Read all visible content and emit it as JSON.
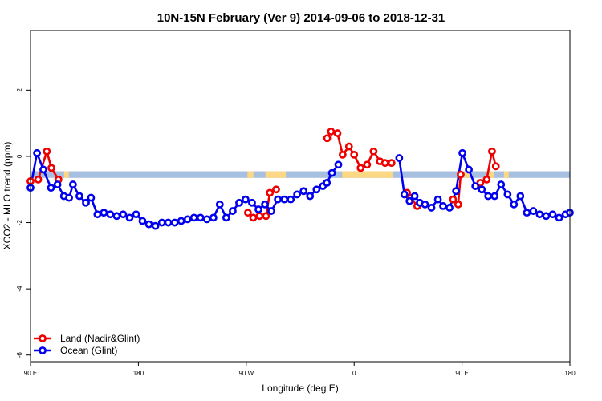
{
  "chart_data": {
    "type": "line",
    "title": "10N-15N February (Ver 9)   2014-09-06 to 2018-12-31",
    "xlabel": "Longitude (deg E)",
    "ylabel": "XCO2 - MLO trend (ppm)",
    "xlim": [
      90,
      450
    ],
    "ylim": [
      -6.2,
      3.8
    ],
    "x_ticks": [
      {
        "value": 90,
        "label": "90 E"
      },
      {
        "value": 180,
        "label": "180"
      },
      {
        "value": 270,
        "label": "90 W"
      },
      {
        "value": 360,
        "label": "0"
      },
      {
        "value": 450,
        "label": "90 E"
      },
      {
        "value": 540,
        "label": "180"
      }
    ],
    "y_ticks": [
      {
        "value": 2,
        "label": "2"
      },
      {
        "value": 0,
        "label": "0"
      },
      {
        "value": -2,
        "label": "-2"
      },
      {
        "value": -4,
        "label": "-4"
      },
      {
        "value": -6,
        "label": "-6"
      }
    ],
    "x_map": {
      "x0": 90,
      "x1": 540,
      "x1_value": 450
    },
    "band": {
      "from": -0.45,
      "to": -0.65,
      "color": "#a7bfe0",
      "land_color": "#fcd884"
    },
    "band_land_segments": [
      [
        118,
        122
      ],
      [
        271,
        276
      ],
      [
        286,
        303
      ],
      [
        350,
        392
      ],
      [
        452,
        457
      ],
      [
        471,
        477
      ],
      [
        485,
        489
      ]
    ],
    "grid": false,
    "legend_position": "bottom-left",
    "series": [
      {
        "name": "Land (Nadir&Glint)",
        "color": "#ee0000",
        "segments": [
          {
            "x": [
              90,
              96.4,
              103.6,
              107.4,
              113.3
            ],
            "y": [
              -0.75,
              -0.7,
              0.15,
              -0.35,
              -0.7
            ]
          },
          {
            "x": [
              271.4,
              275.8,
              281.1,
              286.5,
              289.7,
              294.9
            ],
            "y": [
              -1.7,
              -1.85,
              -1.8,
              -1.8,
              -1.1,
              -1.0
            ]
          },
          {
            "x": [
              337.5,
              340.7,
              346.1,
              350.4,
              355.7,
              360,
              365.4,
              370.8,
              376.2,
              381.5,
              385.8,
              391.2
            ],
            "y": [
              0.55,
              0.75,
              0.7,
              0.05,
              0.3,
              0.05,
              -0.35,
              -0.25,
              0.15,
              -0.15,
              -0.2,
              -0.2
            ]
          },
          {
            "x": [
              404.1,
              407.3,
              412.7
            ],
            "y": [
              -1.1,
              -1.25,
              -1.5
            ]
          },
          {
            "x": [
              442.5,
              446.8,
              448.9
            ],
            "y": [
              -1.3,
              -1.45,
              -0.55
            ]
          },
          {
            "x": [
              465.3,
              470.6,
              475,
              478.2
            ],
            "y": [
              -0.8,
              -0.7,
              0.15,
              -0.3
            ]
          }
        ]
      },
      {
        "name": "Ocean (Glint)",
        "color": "#0000ee",
        "segments": [
          {
            "x": [
              90,
              95.4,
              100.7,
              107.1,
              112.5,
              117.9,
              122.2,
              125.4,
              130.8,
              136.2,
              140.5,
              145.8,
              151.2,
              156.6,
              161.9,
              167.3,
              172.7,
              178.1,
              183.4,
              188.8,
              194.2,
              199.6,
              204.9,
              210.3,
              215.7,
              221.1,
              226.4,
              231.8,
              237.2,
              242.6,
              247.9,
              253.3,
              258.7,
              264.1,
              269.4,
              274.8,
              280.2,
              285.6,
              290.9,
              296.3,
              301.7,
              307.1,
              312.4,
              317.8,
              323.2,
              328.6,
              333.9,
              337.2
            ],
            "y": [
              -0.95,
              0.1,
              -0.4,
              -0.95,
              -0.85,
              -1.2,
              -1.25,
              -0.85,
              -1.2,
              -1.4,
              -1.25,
              -1.75,
              -1.7,
              -1.75,
              -1.8,
              -1.75,
              -1.85,
              -1.75,
              -1.95,
              -2.05,
              -2.1,
              -2.0,
              -2.0,
              -2.0,
              -1.95,
              -1.9,
              -1.85,
              -1.85,
              -1.9,
              -1.85,
              -1.45,
              -1.85,
              -1.65,
              -1.4,
              -1.3,
              -1.4,
              -1.6,
              -1.45,
              -1.65,
              -1.3,
              -1.3,
              -1.3,
              -1.15,
              -1.05,
              -1.2,
              -1.0,
              -0.9,
              -0.8
            ]
          },
          {
            "x": [
              337.2,
              341.5,
              346.8
            ],
            "y": [
              -0.8,
              -0.5,
              -0.25
            ]
          },
          {
            "x": [
              397.6,
              401.9,
              406.2,
              410.5,
              414.8,
              419.1,
              424.5,
              429.9,
              434.2,
              439.6,
              445,
              450.3,
              455.7,
              461.1,
              466.5,
              471.8,
              477.2,
              482.6,
              488,
              493.3,
              498.7,
              504.1,
              509.5,
              514.8,
              520.2,
              525.6,
              531,
              536.4,
              540
            ],
            "y": [
              -0.05,
              -1.15,
              -1.35,
              -1.2,
              -1.4,
              -1.45,
              -1.55,
              -1.3,
              -1.5,
              -1.55,
              -1.05,
              0.1,
              -0.4,
              -0.9,
              -1.0,
              -1.2,
              -1.2,
              -0.85,
              -1.15,
              -1.45,
              -1.2,
              -1.7,
              -1.65,
              -1.75,
              -1.8,
              -1.75,
              -1.85,
              -1.75,
              -1.7
            ]
          }
        ]
      }
    ]
  }
}
